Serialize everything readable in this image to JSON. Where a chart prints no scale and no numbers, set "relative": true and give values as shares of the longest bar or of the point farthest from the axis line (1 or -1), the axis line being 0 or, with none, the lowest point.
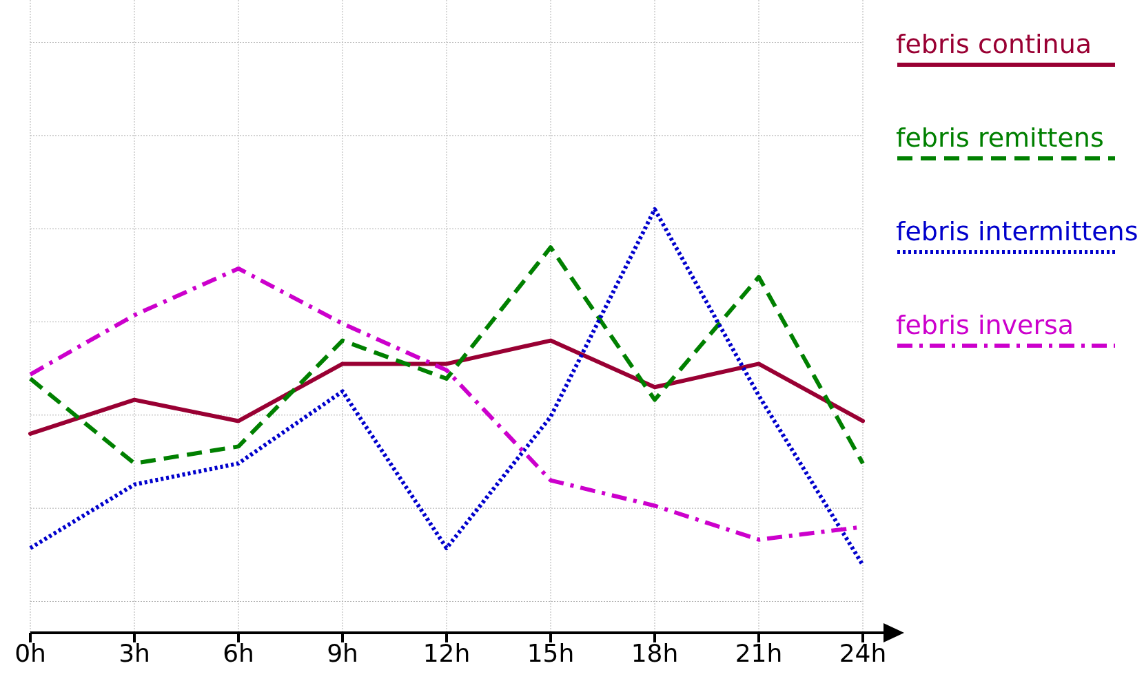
{
  "chart_data": {
    "type": "line",
    "relative": true,
    "grid": true,
    "legend": "right",
    "categories": [
      "0h",
      "3h",
      "6h",
      "9h",
      "12h",
      "15h",
      "18h",
      "21h",
      "24h"
    ],
    "series": [
      {
        "name": "febris continua",
        "color": "#990033",
        "line_style": "solid",
        "values": [
          0.47,
          0.55,
          0.5,
          0.635,
          0.635,
          0.69,
          0.58,
          0.635,
          0.5
        ]
      },
      {
        "name": "febris remittens",
        "color": "#008000",
        "line_style": "dashed",
        "values": [
          0.6,
          0.4,
          0.44,
          0.69,
          0.6,
          0.91,
          0.55,
          0.84,
          0.4
        ]
      },
      {
        "name": "febris intermittens",
        "color": "#0000cc",
        "line_style": "dotted",
        "values": [
          0.2,
          0.35,
          0.4,
          0.57,
          0.2,
          0.51,
          1,
          0.56,
          0.16
        ]
      },
      {
        "name": "febris inversa",
        "color": "#cc00cc",
        "line_style": "dashdot",
        "values": [
          0.61,
          0.75,
          0.86,
          0.73,
          0.62,
          0.36,
          0.3,
          0.22,
          0.25
        ]
      }
    ]
  }
}
